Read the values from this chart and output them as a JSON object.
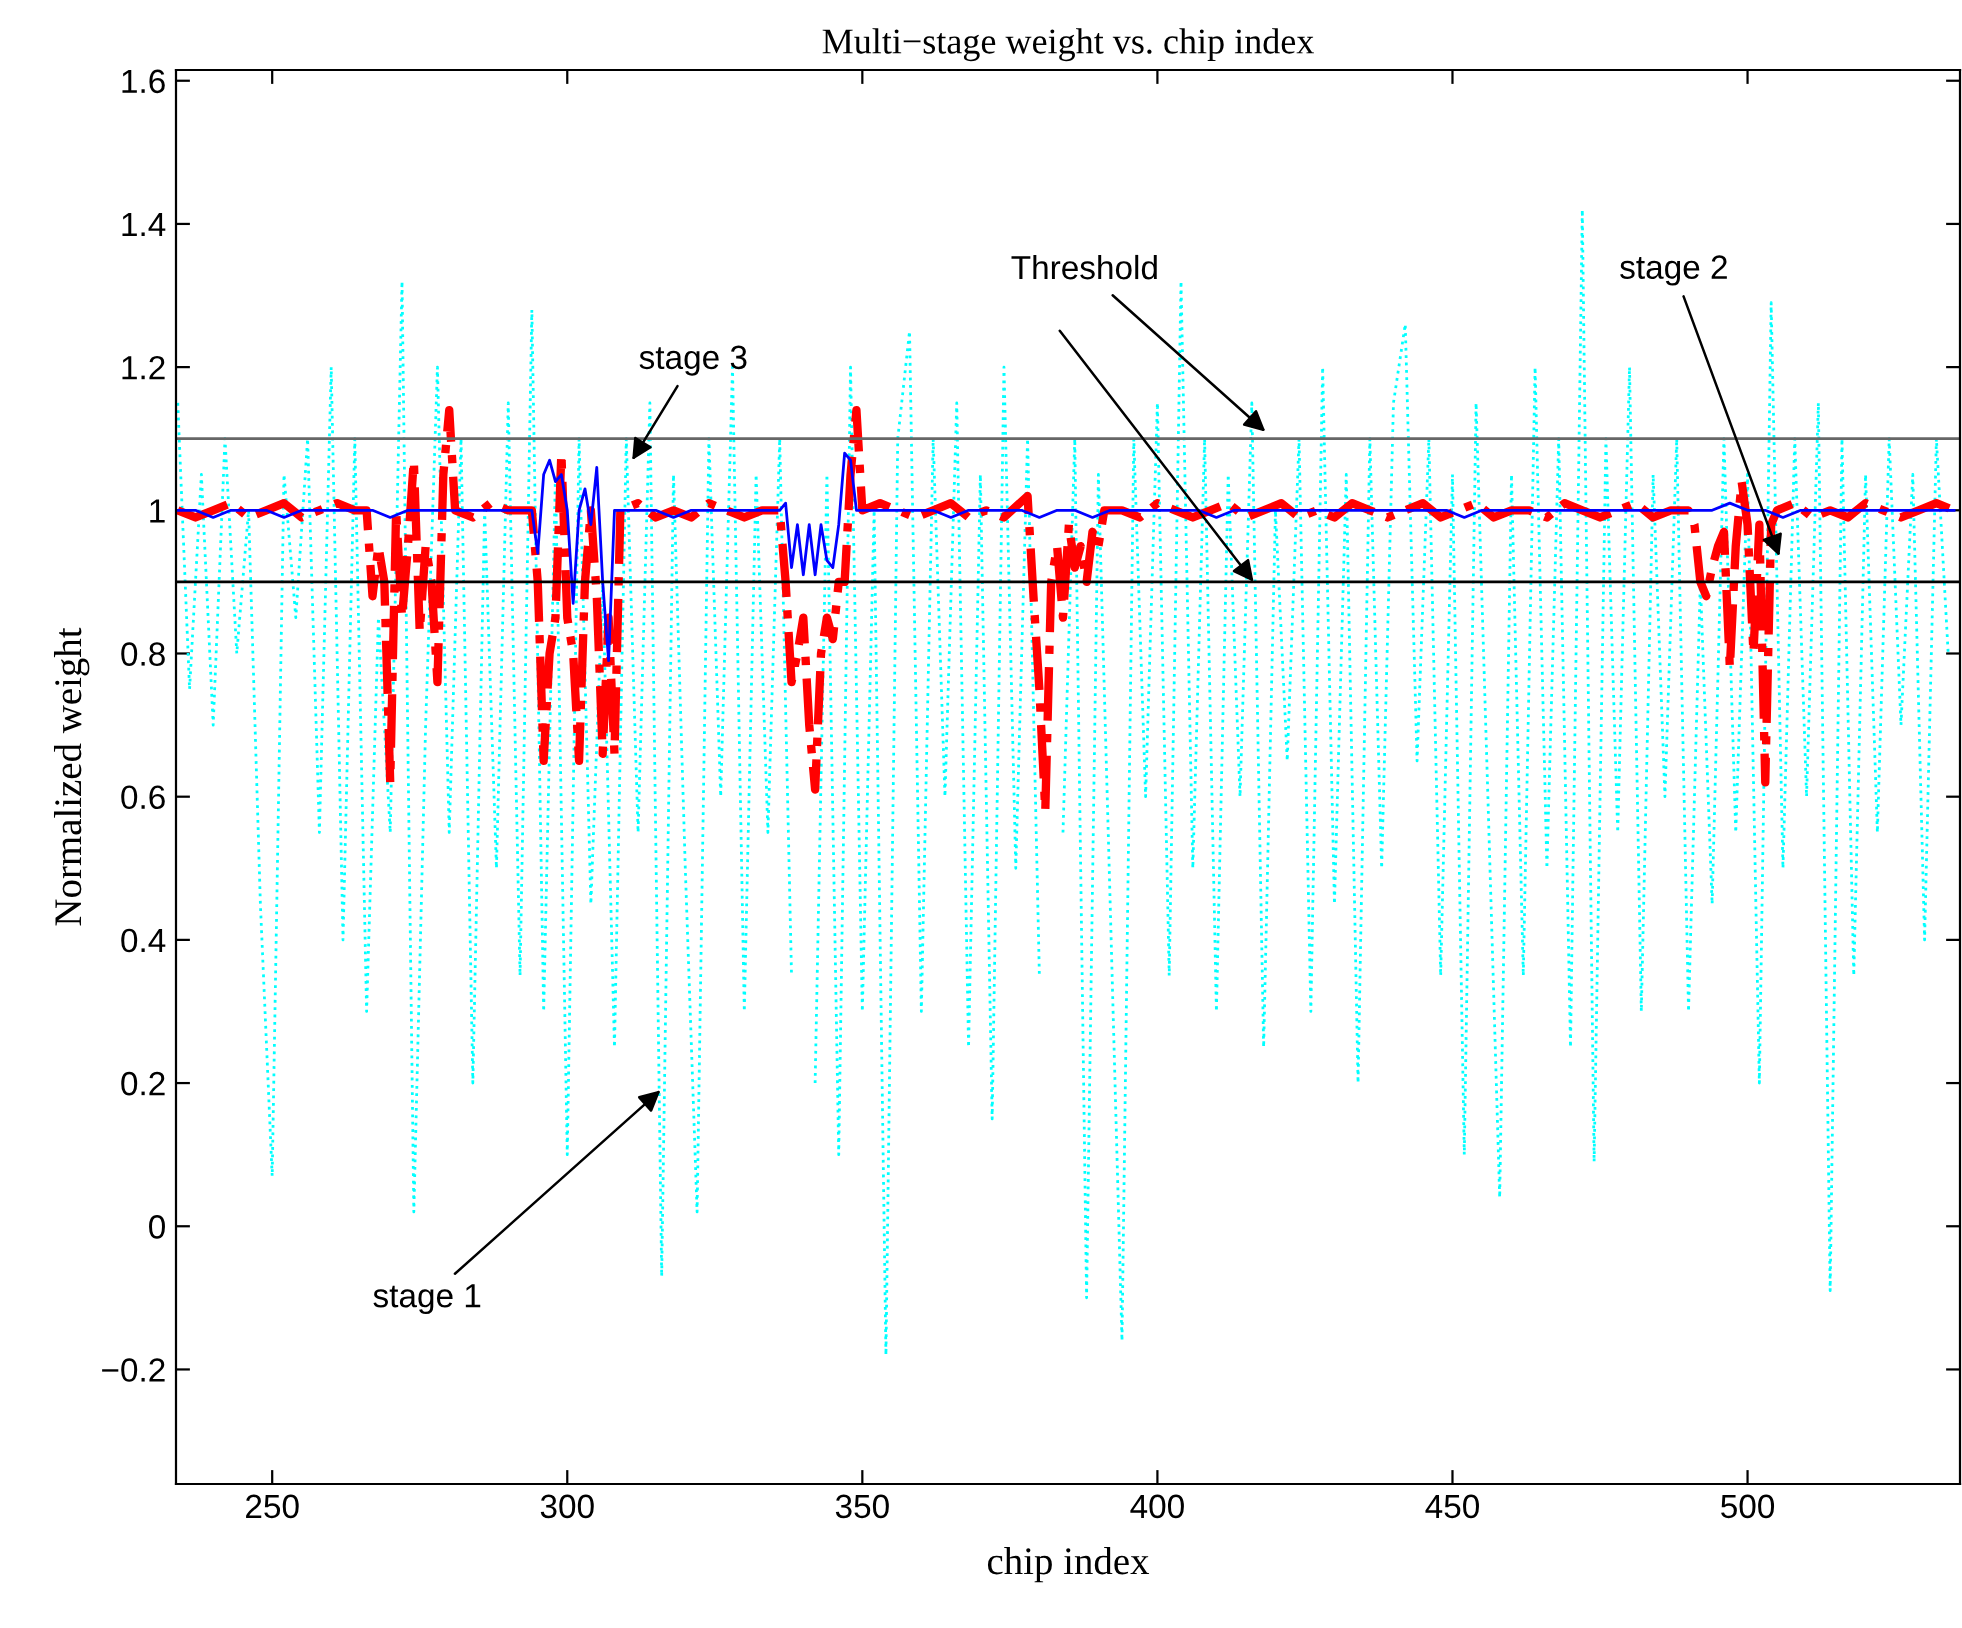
{
  "chart_data": {
    "type": "line",
    "title": "Multi−stage weight vs. chip index",
    "xlabel": "chip index",
    "ylabel": "Normalized weight",
    "xlim": [
      233.7,
      536
    ],
    "xticks": [
      250,
      300,
      350,
      400,
      450,
      500
    ],
    "ylim": [
      -0.36,
      1.615
    ],
    "yticks": [
      {
        "value": -0.2,
        "label": "−0.2"
      },
      0,
      0.2,
      0.4,
      0.6,
      0.8,
      1,
      1.2,
      1.4,
      1.6
    ],
    "grid": false,
    "legend": false,
    "marker": "none",
    "series": [
      {
        "color": "#00ffff",
        "line_style": "dotted",
        "x": [
          234,
          236,
          238,
          240,
          242,
          244,
          246,
          248,
          250,
          252,
          254,
          256,
          258,
          260,
          262,
          264,
          266,
          268,
          270,
          272,
          274,
          276,
          278,
          280,
          282,
          284,
          286,
          288,
          290,
          292,
          294,
          296,
          298,
          300,
          302,
          304,
          306,
          308,
          310,
          312,
          314,
          316,
          318,
          320,
          322,
          324,
          326,
          328,
          330,
          332,
          334,
          336,
          338,
          340,
          342,
          344,
          346,
          348,
          350,
          352,
          354,
          356,
          358,
          360,
          362,
          364,
          366,
          368,
          370,
          372,
          374,
          376,
          378,
          380,
          382,
          384,
          386,
          388,
          390,
          392,
          394,
          396,
          398,
          400,
          402,
          404,
          406,
          408,
          410,
          412,
          414,
          416,
          418,
          420,
          422,
          424,
          426,
          428,
          430,
          432,
          434,
          436,
          438,
          440,
          442,
          444,
          446,
          448,
          450,
          452,
          454,
          456,
          458,
          460,
          462,
          464,
          466,
          468,
          470,
          472,
          474,
          476,
          478,
          480,
          482,
          484,
          486,
          488,
          490,
          492,
          494,
          496,
          498,
          500,
          502,
          504,
          506,
          508,
          510,
          512,
          514,
          516,
          518,
          520,
          522,
          524,
          526,
          528,
          530,
          532,
          534
        ],
        "values": [
          1.15,
          0.75,
          1.05,
          0.7,
          1.1,
          0.8,
          1.0,
          0.45,
          0.07,
          1.05,
          0.85,
          1.1,
          0.55,
          1.2,
          0.4,
          1.1,
          0.3,
          0.85,
          0.55,
          1.32,
          0.02,
          0.7,
          1.2,
          0.55,
          1.1,
          0.2,
          1.0,
          0.5,
          1.15,
          0.35,
          1.28,
          0.3,
          1.05,
          0.1,
          1.1,
          0.45,
          0.9,
          0.25,
          1.1,
          0.55,
          1.15,
          -0.07,
          1.05,
          0.5,
          0.02,
          1.1,
          0.6,
          1.2,
          0.3,
          1.05,
          0.55,
          1.1,
          0.35,
          null,
          0.2,
          1.05,
          0.1,
          1.2,
          0.3,
          1.0,
          -0.18,
          1.1,
          1.25,
          0.3,
          1.1,
          0.6,
          1.15,
          0.25,
          1.05,
          0.15,
          1.2,
          0.5,
          1.1,
          0.35,
          null,
          0.55,
          1.1,
          -0.1,
          1.05,
          0.45,
          -0.16,
          1.1,
          0.6,
          1.15,
          0.35,
          1.32,
          0.5,
          1.1,
          0.3,
          1.05,
          0.6,
          1.15,
          0.25,
          1.0,
          0.65,
          1.1,
          0.3,
          1.2,
          0.45,
          1.05,
          0.2,
          1.1,
          0.5,
          1.15,
          1.26,
          0.65,
          1.1,
          0.35,
          1.05,
          0.1,
          1.15,
          0.6,
          0.04,
          1.05,
          0.35,
          1.2,
          0.5,
          1.1,
          0.25,
          1.42,
          0.09,
          1.1,
          0.55,
          1.2,
          0.3,
          1.05,
          0.6,
          1.1,
          0.3,
          0.9,
          0.45,
          1.1,
          0.55,
          1.05,
          0.2,
          1.29,
          0.5,
          1.1,
          0.6,
          1.15,
          -0.09,
          1.1,
          0.35,
          1.05,
          0.55,
          1.1,
          0.7,
          1.05,
          0.4,
          1.1,
          0.8
        ]
      },
      {
        "color": "#ff0000",
        "line_style": "dashdot",
        "x": [
          234,
          237,
          240,
          243,
          246,
          249,
          252,
          255,
          258,
          261,
          264,
          266,
          267,
          268,
          269,
          270,
          271,
          272,
          273,
          274,
          275,
          276,
          277,
          278,
          279,
          280,
          281,
          284,
          287,
          290,
          294,
          295,
          296,
          297,
          298,
          299,
          300,
          301,
          302,
          303,
          304,
          305,
          306,
          307,
          308,
          309,
          312,
          315,
          318,
          321,
          324,
          327,
          330,
          333,
          336,
          337,
          338,
          339,
          340,
          341,
          342,
          343,
          344,
          345,
          346,
          347,
          348,
          349,
          350,
          353,
          356,
          359,
          362,
          365,
          368,
          371,
          374,
          378,
          379,
          380,
          381,
          382,
          383,
          384,
          385,
          386,
          387,
          388,
          389,
          390,
          391,
          394,
          397,
          400,
          403,
          406,
          409,
          412,
          415,
          418,
          421,
          424,
          427,
          430,
          433,
          436,
          439,
          442,
          445,
          448,
          451,
          454,
          457,
          460,
          463,
          466,
          469,
          472,
          475,
          478,
          481,
          484,
          487,
          490,
          491,
          492,
          493,
          494,
          495,
          496,
          497,
          498,
          499,
          500,
          501,
          502,
          503,
          504,
          505,
          508,
          511,
          514,
          517,
          520,
          523,
          526,
          529,
          532,
          535
        ],
        "values": [
          1.0,
          0.99,
          1.0,
          1.01,
          0.99,
          1.0,
          1.01,
          0.99,
          1.0,
          1.01,
          1.0,
          1.0,
          0.88,
          0.95,
          0.9,
          0.62,
          1.0,
          0.85,
          0.95,
          1.07,
          0.83,
          0.95,
          0.9,
          0.76,
          1.05,
          1.14,
          1.0,
          0.99,
          1.01,
          1.0,
          1.0,
          0.9,
          0.65,
          0.8,
          0.85,
          1.08,
          0.85,
          0.8,
          0.65,
          0.9,
          1.0,
          0.88,
          0.66,
          0.85,
          0.66,
          1.0,
          1.01,
          0.99,
          1.0,
          0.99,
          1.01,
          1.0,
          0.99,
          1.0,
          1.0,
          0.9,
          0.76,
          0.8,
          0.85,
          0.7,
          0.61,
          0.8,
          0.85,
          0.82,
          0.9,
          0.9,
          1.05,
          1.14,
          1.0,
          1.01,
          1.0,
          0.99,
          1.0,
          1.01,
          0.99,
          1.0,
          0.99,
          1.02,
          0.88,
          0.75,
          0.58,
          0.9,
          0.95,
          0.85,
          0.98,
          0.92,
          0.95,
          0.9,
          0.97,
          0.95,
          1.0,
          1.0,
          0.99,
          1.01,
          1.0,
          0.99,
          1.0,
          1.01,
          0.99,
          1.0,
          1.01,
          0.99,
          1.0,
          0.99,
          1.01,
          1.0,
          0.99,
          1.0,
          1.01,
          0.99,
          1.0,
          1.01,
          0.99,
          1.0,
          1.0,
          0.99,
          1.01,
          1.0,
          0.99,
          1.0,
          1.01,
          0.99,
          1.0,
          1.0,
          0.98,
          0.9,
          0.88,
          0.92,
          0.95,
          0.97,
          0.78,
          0.95,
          1.04,
          0.98,
          0.8,
          0.98,
          0.62,
          0.98,
          1.0,
          1.01,
          0.99,
          1.0,
          0.99,
          1.01,
          1.0,
          0.99,
          1.0,
          1.01,
          1.0
        ]
      },
      {
        "color": "#0000ff",
        "line_style": "solid",
        "x": [
          234,
          237,
          240,
          243,
          246,
          249,
          252,
          255,
          258,
          261,
          264,
          267,
          270,
          273,
          276,
          279,
          282,
          285,
          288,
          291,
          294,
          295,
          296,
          297,
          298,
          299,
          300,
          301,
          302,
          303,
          304,
          305,
          306,
          307,
          308,
          309,
          312,
          315,
          318,
          321,
          324,
          327,
          330,
          333,
          336,
          337,
          338,
          339,
          340,
          341,
          342,
          343,
          344,
          345,
          346,
          347,
          348,
          349,
          350,
          353,
          356,
          359,
          362,
          365,
          368,
          371,
          374,
          377,
          380,
          383,
          386,
          389,
          392,
          395,
          398,
          401,
          404,
          407,
          410,
          413,
          416,
          419,
          422,
          425,
          428,
          431,
          434,
          437,
          440,
          443,
          446,
          449,
          452,
          455,
          458,
          461,
          464,
          467,
          470,
          473,
          476,
          479,
          482,
          485,
          488,
          491,
          494,
          497,
          500,
          503,
          506,
          509,
          512,
          515,
          518,
          521,
          524,
          527,
          530,
          533,
          535
        ],
        "values": [
          1.0,
          1.0,
          0.99,
          1.0,
          1.0,
          1.0,
          0.99,
          1.0,
          1.0,
          1.0,
          1.0,
          1.0,
          0.99,
          1.0,
          1.0,
          1.0,
          1.0,
          1.0,
          1.0,
          1.0,
          1.0,
          0.94,
          1.05,
          1.07,
          1.04,
          1.05,
          1.0,
          0.87,
          1.0,
          1.03,
          0.98,
          1.06,
          0.9,
          0.79,
          1.0,
          1.0,
          1.0,
          1.0,
          0.99,
          1.0,
          1.0,
          1.0,
          1.0,
          1.0,
          1.0,
          1.01,
          0.92,
          0.98,
          0.91,
          0.98,
          0.91,
          0.98,
          0.93,
          0.92,
          0.98,
          1.08,
          1.07,
          1.0,
          1.0,
          1.0,
          1.0,
          1.0,
          1.0,
          0.99,
          1.0,
          1.0,
          1.0,
          1.0,
          0.99,
          1.0,
          1.0,
          0.99,
          1.0,
          1.0,
          1.0,
          1.0,
          1.0,
          1.0,
          0.99,
          1.0,
          1.0,
          1.0,
          1.0,
          1.0,
          1.0,
          1.0,
          1.0,
          1.0,
          1.0,
          1.0,
          1.0,
          1.0,
          0.99,
          1.0,
          1.0,
          1.0,
          1.0,
          1.0,
          1.0,
          1.0,
          1.0,
          1.0,
          1.0,
          1.0,
          1.0,
          1.0,
          1.0,
          1.01,
          1.0,
          1.0,
          0.99,
          1.0,
          1.0,
          1.0,
          1.0,
          1.0,
          1.0,
          1.0,
          1.0,
          1.0,
          1.0
        ]
      }
    ],
    "ref_lines": [
      {
        "axis": "y",
        "value": 1.1,
        "color": "#666666"
      },
      {
        "axis": "y",
        "value": 0.9,
        "color": "#000000"
      }
    ],
    "annotations": [
      {
        "text": "stage 3",
        "x": 311,
        "y": 1.07
      },
      {
        "text": "stage 1",
        "x": 315.8,
        "y": 0.19
      },
      {
        "text": "Threshold",
        "x": 418.3,
        "y": 1.11
      },
      {
        "text": "stage 2",
        "x": 505.4,
        "y": 0.936
      }
    ]
  }
}
